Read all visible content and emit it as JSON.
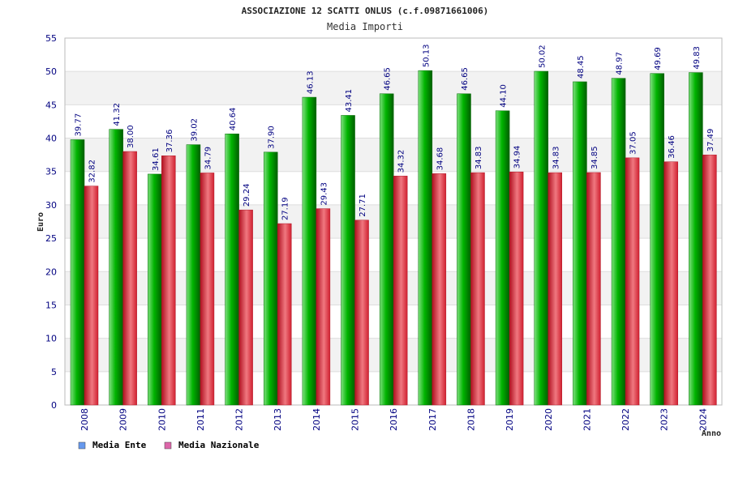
{
  "chart_data": {
    "type": "bar",
    "title": "ASSOCIAZIONE 12 SCATTI ONLUS (c.f.09871661006)",
    "subtitle": "Media Importi",
    "xlabel": "Anno",
    "ylabel": "Euro",
    "ylim": [
      0,
      55
    ],
    "yticks": [
      0,
      5,
      10,
      15,
      20,
      25,
      30,
      35,
      40,
      45,
      50,
      55
    ],
    "grid": true,
    "legend_position": "bottom-left",
    "categories": [
      "2008",
      "2009",
      "2010",
      "2011",
      "2012",
      "2013",
      "2014",
      "2015",
      "2016",
      "2017",
      "2018",
      "2019",
      "2020",
      "2021",
      "2022",
      "2023",
      "2024"
    ],
    "series": [
      {
        "name": "Media Ente",
        "color": "#00b000",
        "legend_color": "#6699ee",
        "values": [
          39.77,
          41.32,
          34.61,
          39.02,
          40.64,
          37.9,
          46.13,
          43.41,
          46.65,
          50.13,
          46.65,
          44.1,
          50.02,
          48.45,
          48.97,
          49.69,
          49.83
        ],
        "labels": [
          "39.77",
          "41.32",
          "34.61",
          "39.02",
          "40.64",
          "37.90",
          "46.13",
          "43.41",
          "46.65",
          "50.13",
          "46.65",
          "44.10",
          "50.02",
          "48.45",
          "48.97",
          "49.69",
          "49.83"
        ]
      },
      {
        "name": "Media Nazionale",
        "color": "#e83040",
        "legend_color": "#dd66aa",
        "values": [
          32.82,
          38.0,
          37.36,
          34.79,
          29.24,
          27.19,
          29.43,
          27.71,
          34.32,
          34.68,
          34.83,
          34.94,
          34.83,
          34.85,
          37.05,
          36.46,
          37.49
        ],
        "labels": [
          "32.82",
          "38.00",
          "37.36",
          "34.79",
          "29.24",
          "27.19",
          "29.43",
          "27.71",
          "34.32",
          "34.68",
          "34.83",
          "34.94",
          "34.83",
          "34.85",
          "37.05",
          "36.46",
          "37.49"
        ]
      }
    ]
  }
}
